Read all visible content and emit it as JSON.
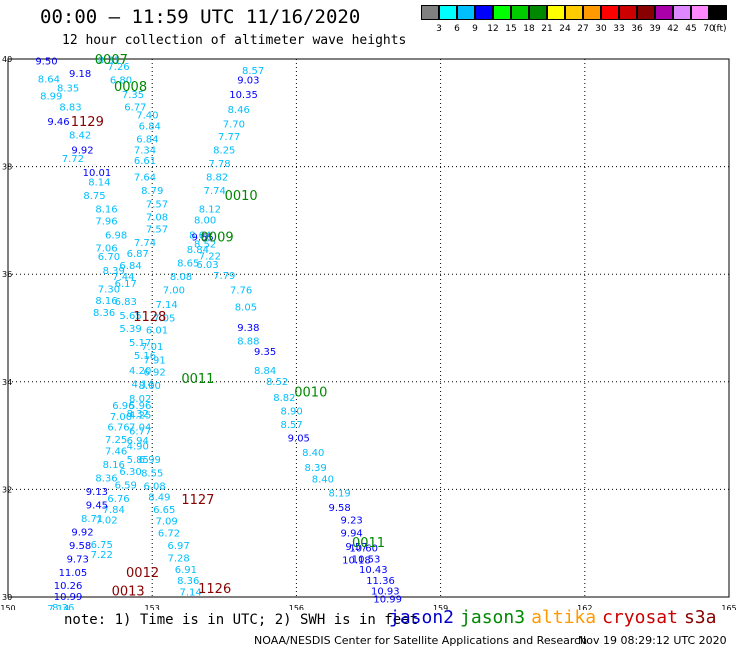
{
  "header": {
    "title": "00:00 – 11:59 UTC 11/16/2020",
    "subtitle": "12 hour collection of altimeter wave heights"
  },
  "color_scale": {
    "labels": [
      "3",
      "6",
      "9",
      "12",
      "15",
      "18",
      "21",
      "24",
      "27",
      "30",
      "33",
      "36",
      "39",
      "42",
      "45",
      "70"
    ],
    "unit": "(ft)",
    "colors": [
      "#808080",
      "#00ffff",
      "#00bfff",
      "#0000ff",
      "#00ff00",
      "#00cc00",
      "#008800",
      "#ffff00",
      "#ffcc00",
      "#ff9900",
      "#ff0000",
      "#cc0000",
      "#880000",
      "#aa00aa",
      "#dd88ff",
      "#ff88ff",
      "#000000"
    ]
  },
  "footer": {
    "note": "note: 1) Time is in UTC; 2) SWH is in feet",
    "satellites": [
      {
        "name": "jason2",
        "color": "#0000cc"
      },
      {
        "name": "jason3",
        "color": "#008800"
      },
      {
        "name": "altika",
        "color": "#ff9900"
      },
      {
        "name": "cryosat",
        "color": "#cc0000"
      },
      {
        "name": "s3a",
        "color": "#880000"
      }
    ],
    "credit": "NOAA/NESDIS Center for Satellite Applications and Research",
    "timestamp": "Nov 19 08:29:12 UTC 2020"
  },
  "chart_data": {
    "type": "scatter",
    "title": "00:00 – 11:59 UTC 11/16/2020",
    "subtitle": "12 hour collection of altimeter wave heights",
    "xlabel": "",
    "ylabel": "",
    "xlim": [
      150,
      165
    ],
    "ylim": [
      30,
      40
    ],
    "xticks": [
      150,
      153,
      156,
      159,
      162,
      165
    ],
    "yticks": [
      30,
      32,
      34,
      36,
      38,
      40
    ],
    "grid": true,
    "levels": [
      {
        "max": 9,
        "color": "#00bfff"
      },
      {
        "max": 12,
        "color": "#0000ff"
      },
      {
        "max": 999,
        "color": "#000000"
      }
    ],
    "time_colors": {
      "0007": "#008800",
      "0008": "#008800",
      "0009": "#008800",
      "0010": "#008800",
      "0011": "#008800",
      "1129": "#880000",
      "1128": "#880000",
      "1127": "#880000",
      "1126": "#880000",
      "0012": "#880000",
      "0013": "#880000"
    },
    "time_labels": [
      {
        "text": "0007",
        "x": 152.15,
        "y": 39.98
      },
      {
        "text": "0008",
        "x": 152.55,
        "y": 39.48
      },
      {
        "text": "1129",
        "x": 151.65,
        "y": 38.83
      },
      {
        "text": "0010",
        "x": 154.85,
        "y": 37.45
      },
      {
        "text": "0009",
        "x": 154.35,
        "y": 36.68
      },
      {
        "text": "1128",
        "x": 152.95,
        "y": 35.2
      },
      {
        "text": "0011",
        "x": 153.95,
        "y": 34.05
      },
      {
        "text": "0010",
        "x": 156.3,
        "y": 33.8
      },
      {
        "text": "1127",
        "x": 153.95,
        "y": 31.8
      },
      {
        "text": "0011",
        "x": 157.5,
        "y": 31.0
      },
      {
        "text": "0012",
        "x": 152.8,
        "y": 30.45
      },
      {
        "text": "1126",
        "x": 154.3,
        "y": 30.15
      },
      {
        "text": "0013",
        "x": 152.5,
        "y": 30.1
      }
    ],
    "series": [
      {
        "name": "track-a",
        "x": [
          150.8,
          151.5,
          150.85,
          151.25,
          150.9,
          151.3,
          151.05,
          151.5,
          151.55,
          151.35,
          151.85,
          151.9,
          151.8,
          152.05,
          152.05,
          152.25,
          152.05,
          152.1,
          152.2,
          152.45,
          152.45,
          152.55,
          152.55,
          152.75,
          152.85,
          152.75,
          152.8,
          152.75,
          152.75,
          152.75,
          152.7,
          152.7,
          152.55,
          152.45,
          152.3,
          152.2,
          152.05,
          151.95,
          151.95
        ],
        "y": [
          39.95,
          39.72,
          39.62,
          39.45,
          39.3,
          39.1,
          38.83,
          38.58,
          38.3,
          38.14,
          37.88,
          37.7,
          37.45,
          37.2,
          36.98,
          36.72,
          36.48,
          36.32,
          36.06,
          35.82,
          35.48,
          35.22,
          34.98,
          34.72,
          34.48,
          34.2,
          33.95,
          33.55,
          33.37,
          33.08,
          32.8,
          32.55,
          32.32,
          32.07,
          31.82,
          31.62,
          31.42,
          30.97,
          30.78
        ],
        "values": [
          9.5,
          9.18,
          8.64,
          8.35,
          8.99,
          8.83,
          9.46,
          8.42,
          9.92,
          7.72,
          10.01,
          8.14,
          8.75,
          8.16,
          7.96,
          6.98,
          7.06,
          6.7,
          8.39,
          6.17,
          6.83,
          5.65,
          5.39,
          5.17,
          5.16,
          4.2,
          4.14,
          5.96,
          4.25,
          6.77,
          4.9,
          5.85,
          6.3,
          6.59,
          6.76,
          7.84,
          7.02,
          6.75,
          7.22
        ]
      },
      {
        "name": "track-b",
        "x": [
          152.1,
          152.3,
          152.35,
          152.6,
          152.65,
          152.9,
          152.95,
          152.9,
          152.85,
          152.85,
          152.85,
          153.0,
          153.1,
          153.1,
          153.1,
          152.85,
          152.7,
          152.55,
          152.4,
          152.1,
          152.05,
          152.0
        ],
        "y": [
          39.97,
          39.85,
          39.6,
          39.33,
          39.1,
          38.95,
          38.75,
          38.5,
          38.3,
          38.1,
          37.8,
          37.55,
          37.3,
          37.05,
          36.83,
          36.58,
          36.38,
          36.15,
          35.95,
          35.72,
          35.5,
          35.28
        ],
        "values": [
          8.31,
          7.26,
          6.8,
          7.35,
          6.77,
          7.4,
          6.84,
          6.84,
          7.34,
          6.61,
          7.64,
          8.79,
          7.57,
          7.08,
          7.57,
          7.74,
          6.87,
          6.84,
          7.44,
          7.3,
          8.16,
          8.36
        ]
      },
      {
        "name": "track-c",
        "x": [
          155.1,
          155.0,
          154.9,
          154.8,
          154.7,
          154.6,
          154.5,
          154.4,
          154.35,
          154.3,
          154.2,
          154.1,
          154.0,
          153.95,
          153.75,
          153.6,
          153.45,
          153.3,
          153.25,
          153.1,
          153.0,
          153.05,
          153.05,
          152.95,
          152.75,
          152.7,
          152.75,
          152.7
        ],
        "y": [
          39.78,
          39.6,
          39.33,
          39.05,
          38.78,
          38.55,
          38.3,
          38.05,
          37.8,
          37.55,
          37.2,
          37.0,
          36.72,
          36.45,
          36.2,
          35.95,
          35.7,
          35.43,
          35.18,
          34.95,
          34.65,
          34.4,
          34.17,
          33.92,
          33.68,
          33.4,
          33.15,
          32.9
        ],
        "values": [
          8.57,
          9.03,
          10.35,
          8.46,
          7.7,
          7.77,
          8.25,
          7.78,
          8.82,
          7.74,
          8.12,
          8.0,
          8.64,
          8.84,
          8.65,
          8.08,
          7.0,
          7.14,
          7.05,
          6.01,
          7.01,
          7.91,
          6.92,
          8.0,
          8.02,
          8.32,
          7.04,
          6.94
        ]
      },
      {
        "name": "track-d",
        "x": [
          154.05,
          154.1,
          154.2,
          154.15,
          154.5,
          154.85,
          154.95,
          155.0,
          155.0,
          155.35,
          155.35,
          155.6,
          155.75,
          155.9,
          155.9,
          156.05,
          156.35,
          156.4,
          156.55,
          156.9,
          156.9,
          157.15,
          157.15,
          157.25,
          157.25
        ],
        "y": [
          36.68,
          36.55,
          36.33,
          36.17,
          35.97,
          35.7,
          35.38,
          35.0,
          34.75,
          34.55,
          34.2,
          34.0,
          33.7,
          33.45,
          33.2,
          32.95,
          32.68,
          32.4,
          32.18,
          31.92,
          31.65,
          31.42,
          31.18,
          30.93,
          30.68
        ],
        "values": [
          9.55,
          8.52,
          7.22,
          6.03,
          7.79,
          7.76,
          8.05,
          9.38,
          8.88,
          9.35,
          8.84,
          8.52,
          8.82,
          8.9,
          8.57,
          9.05,
          8.4,
          8.39,
          8.4,
          8.19,
          9.58,
          9.23,
          9.94,
          9.57,
          10.18
        ]
      },
      {
        "name": "track-e",
        "x": [
          157.4,
          157.45,
          157.6,
          157.75,
          157.85,
          157.9
        ],
        "y": [
          30.9,
          30.7,
          30.5,
          30.3,
          30.1,
          29.95
        ],
        "values": [
          10.6,
          10.53,
          10.43,
          11.36,
          10.93,
          10.99
        ]
      },
      {
        "name": "track-f",
        "x": [
          152.4,
          152.35,
          152.3,
          152.25,
          152.25,
          152.2,
          152.05,
          151.85,
          151.85,
          151.75,
          151.55,
          151.5,
          151.45,
          151.35,
          151.25,
          151.25,
          151.15,
          151.05
        ],
        "y": [
          33.55,
          33.35,
          33.15,
          32.92,
          32.7,
          32.45,
          32.2,
          31.95,
          31.7,
          31.45,
          31.2,
          30.95,
          30.7,
          30.45,
          30.2,
          30.0,
          29.8,
          29.78
        ],
        "values": [
          6.96,
          7.0,
          6.76,
          7.25,
          7.46,
          8.16,
          8.36,
          9.13,
          9.45,
          8.71,
          9.92,
          9.58,
          9.73,
          11.05,
          10.26,
          10.99,
          8.36,
          7.14
        ]
      },
      {
        "name": "track-g",
        "x": [
          152.95,
          153.0,
          153.05,
          153.15,
          153.25,
          153.3,
          153.35,
          153.55,
          153.55,
          153.7,
          153.75,
          153.8
        ],
        "y": [
          32.55,
          32.3,
          32.05,
          31.85,
          31.62,
          31.4,
          31.18,
          30.95,
          30.72,
          30.5,
          30.3,
          30.08
        ],
        "values": [
          6.99,
          8.55,
          6.08,
          8.49,
          6.65,
          7.09,
          6.72,
          6.97,
          7.28,
          6.91,
          8.36,
          7.14
        ]
      }
    ]
  }
}
